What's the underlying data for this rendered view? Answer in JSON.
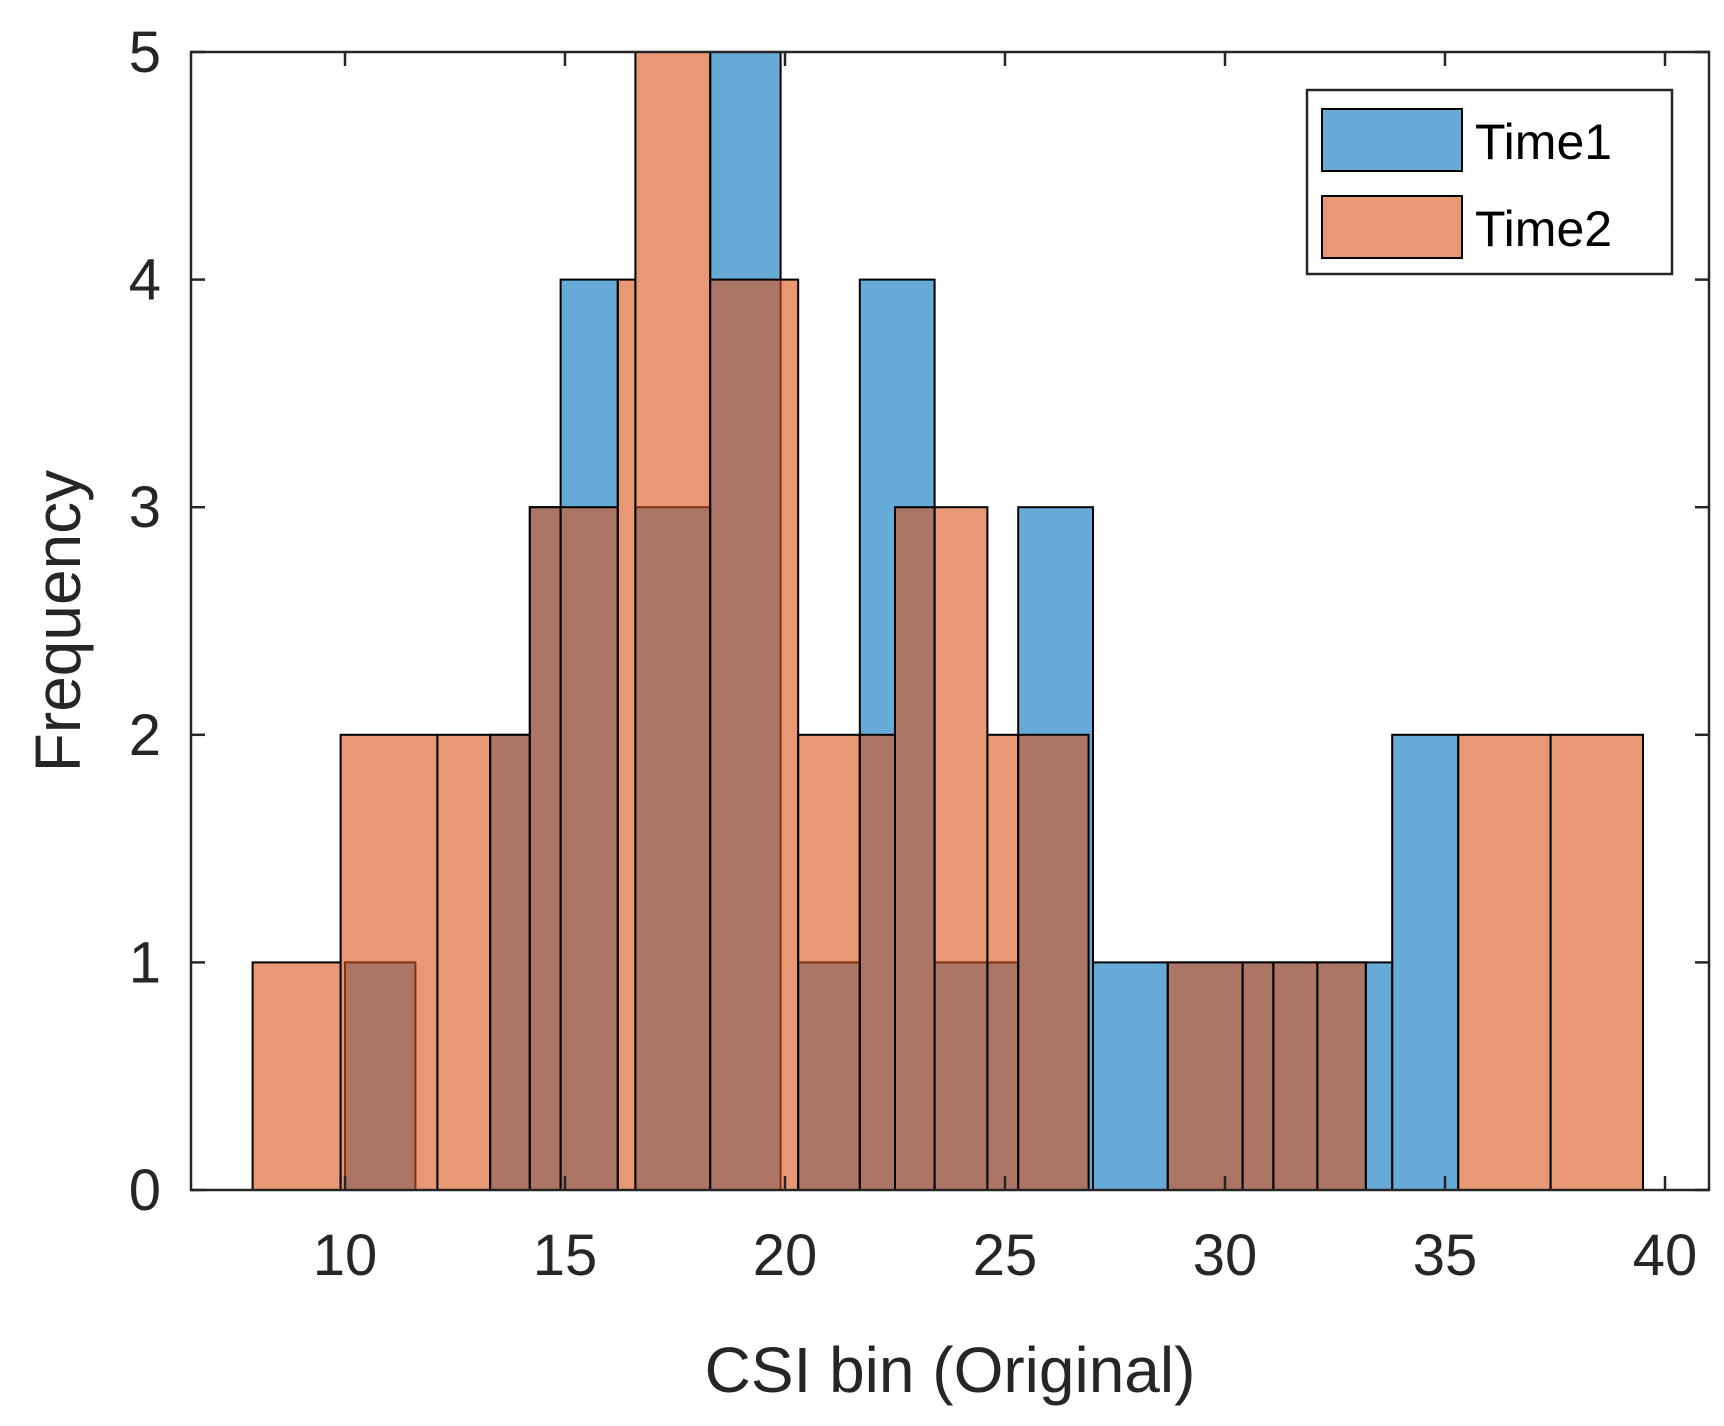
{
  "chart_data": {
    "type": "bar",
    "subtype": "overlapping-histogram",
    "title": "",
    "xlabel": "CSI bin (Original)",
    "ylabel": "Frequency",
    "xlim": [
      6.5,
      41
    ],
    "ylim": [
      0,
      5
    ],
    "xticks": [
      10,
      15,
      20,
      25,
      30,
      35,
      40
    ],
    "yticks": [
      0,
      1,
      2,
      3,
      4,
      5
    ],
    "legend_position": "top-right",
    "series": [
      {
        "name": "Time1",
        "color": "#0072BD",
        "opacity": 0.6,
        "bins": [
          {
            "start": 10.0,
            "end": 11.6,
            "count": 1
          },
          {
            "start": 13.3,
            "end": 14.2,
            "count": 2
          },
          {
            "start": 14.2,
            "end": 14.9,
            "count": 3
          },
          {
            "start": 14.9,
            "end": 16.2,
            "count": 4
          },
          {
            "start": 16.6,
            "end": 18.3,
            "count": 3
          },
          {
            "start": 18.3,
            "end": 19.9,
            "count": 5
          },
          {
            "start": 20.3,
            "end": 21.7,
            "count": 1
          },
          {
            "start": 21.7,
            "end": 23.4,
            "count": 4
          },
          {
            "start": 23.4,
            "end": 25.3,
            "count": 1
          },
          {
            "start": 25.3,
            "end": 27.0,
            "count": 3
          },
          {
            "start": 27.0,
            "end": 28.7,
            "count": 1
          },
          {
            "start": 28.7,
            "end": 30.4,
            "count": 1
          },
          {
            "start": 30.4,
            "end": 31.1,
            "count": 1
          },
          {
            "start": 31.1,
            "end": 32.1,
            "count": 1
          },
          {
            "start": 32.1,
            "end": 33.2,
            "count": 1
          },
          {
            "start": 33.2,
            "end": 33.8,
            "count": 1
          },
          {
            "start": 33.8,
            "end": 35.3,
            "count": 2
          }
        ]
      },
      {
        "name": "Time2",
        "color": "#D95319",
        "opacity": 0.6,
        "bins": [
          {
            "start": 7.9,
            "end": 9.9,
            "count": 1
          },
          {
            "start": 9.9,
            "end": 12.1,
            "count": 2
          },
          {
            "start": 12.1,
            "end": 13.3,
            "count": 2
          },
          {
            "start": 13.3,
            "end": 14.2,
            "count": 2
          },
          {
            "start": 14.2,
            "end": 14.9,
            "count": 3
          },
          {
            "start": 14.9,
            "end": 16.2,
            "count": 3
          },
          {
            "start": 16.2,
            "end": 16.6,
            "count": 4
          },
          {
            "start": 16.6,
            "end": 18.3,
            "count": 5
          },
          {
            "start": 18.3,
            "end": 20.3,
            "count": 4
          },
          {
            "start": 20.3,
            "end": 21.7,
            "count": 2
          },
          {
            "start": 21.7,
            "end": 22.5,
            "count": 2
          },
          {
            "start": 22.5,
            "end": 23.4,
            "count": 3
          },
          {
            "start": 23.4,
            "end": 24.6,
            "count": 3
          },
          {
            "start": 24.6,
            "end": 25.3,
            "count": 2
          },
          {
            "start": 25.3,
            "end": 26.9,
            "count": 2
          },
          {
            "start": 28.7,
            "end": 30.4,
            "count": 1
          },
          {
            "start": 30.4,
            "end": 31.1,
            "count": 1
          },
          {
            "start": 31.1,
            "end": 32.1,
            "count": 1
          },
          {
            "start": 32.1,
            "end": 33.2,
            "count": 1
          },
          {
            "start": 35.3,
            "end": 37.4,
            "count": 2
          },
          {
            "start": 37.4,
            "end": 39.5,
            "count": 2
          }
        ]
      }
    ]
  }
}
